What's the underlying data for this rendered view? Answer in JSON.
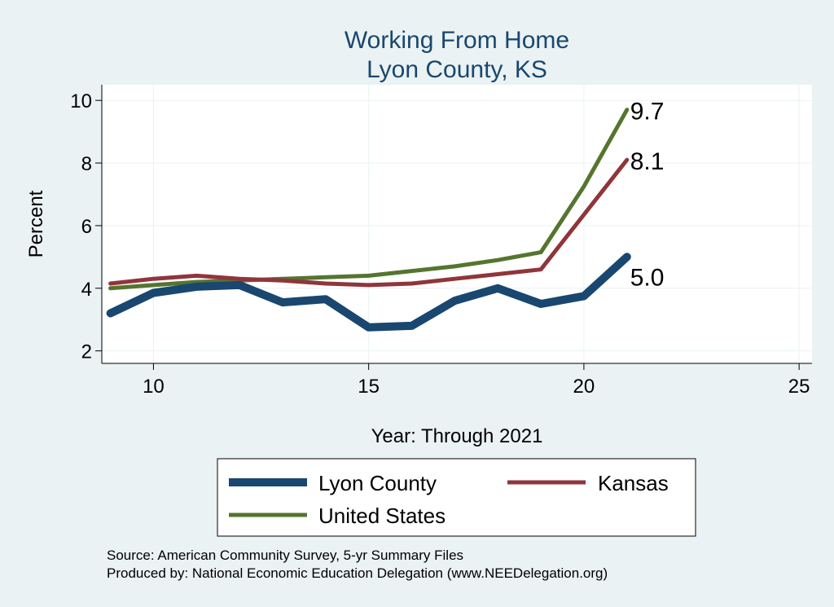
{
  "chart_data": {
    "type": "line",
    "title": "Working From Home",
    "subtitle": "Lyon County, KS",
    "xlabel": "Year: Through 2021",
    "ylabel": "Percent",
    "xlim": [
      8.8,
      25.3
    ],
    "ylim": [
      1.6,
      10.5
    ],
    "xticks": [
      10,
      15,
      20,
      25
    ],
    "yticks": [
      2,
      4,
      6,
      8,
      10
    ],
    "grid": true,
    "legend_position": "bottom",
    "x": [
      9,
      10,
      11,
      12,
      13,
      14,
      15,
      16,
      17,
      18,
      19,
      20,
      21
    ],
    "series": [
      {
        "name": "Lyon County",
        "color": "#1a476f",
        "values": [
          3.2,
          3.85,
          4.05,
          4.1,
          3.55,
          3.65,
          2.75,
          2.8,
          3.6,
          4.0,
          3.5,
          3.75,
          5.0
        ],
        "end_label": "5.0"
      },
      {
        "name": "Kansas",
        "color": "#90353b",
        "values": [
          4.15,
          4.3,
          4.4,
          4.3,
          4.25,
          4.15,
          4.1,
          4.15,
          4.3,
          4.45,
          4.6,
          6.35,
          8.1
        ],
        "end_label": "8.1"
      },
      {
        "name": "United States",
        "color": "#55752f",
        "values": [
          4.0,
          4.1,
          4.2,
          4.25,
          4.3,
          4.35,
          4.4,
          4.55,
          4.7,
          4.9,
          5.15,
          7.25,
          9.7
        ],
        "end_label": "9.7"
      }
    ]
  },
  "notes": {
    "source": "Source: American Community Survey, 5-yr Summary Files",
    "produced_by": "Produced by: National Economic Education Delegation (www.NEEDelegation.org)"
  }
}
